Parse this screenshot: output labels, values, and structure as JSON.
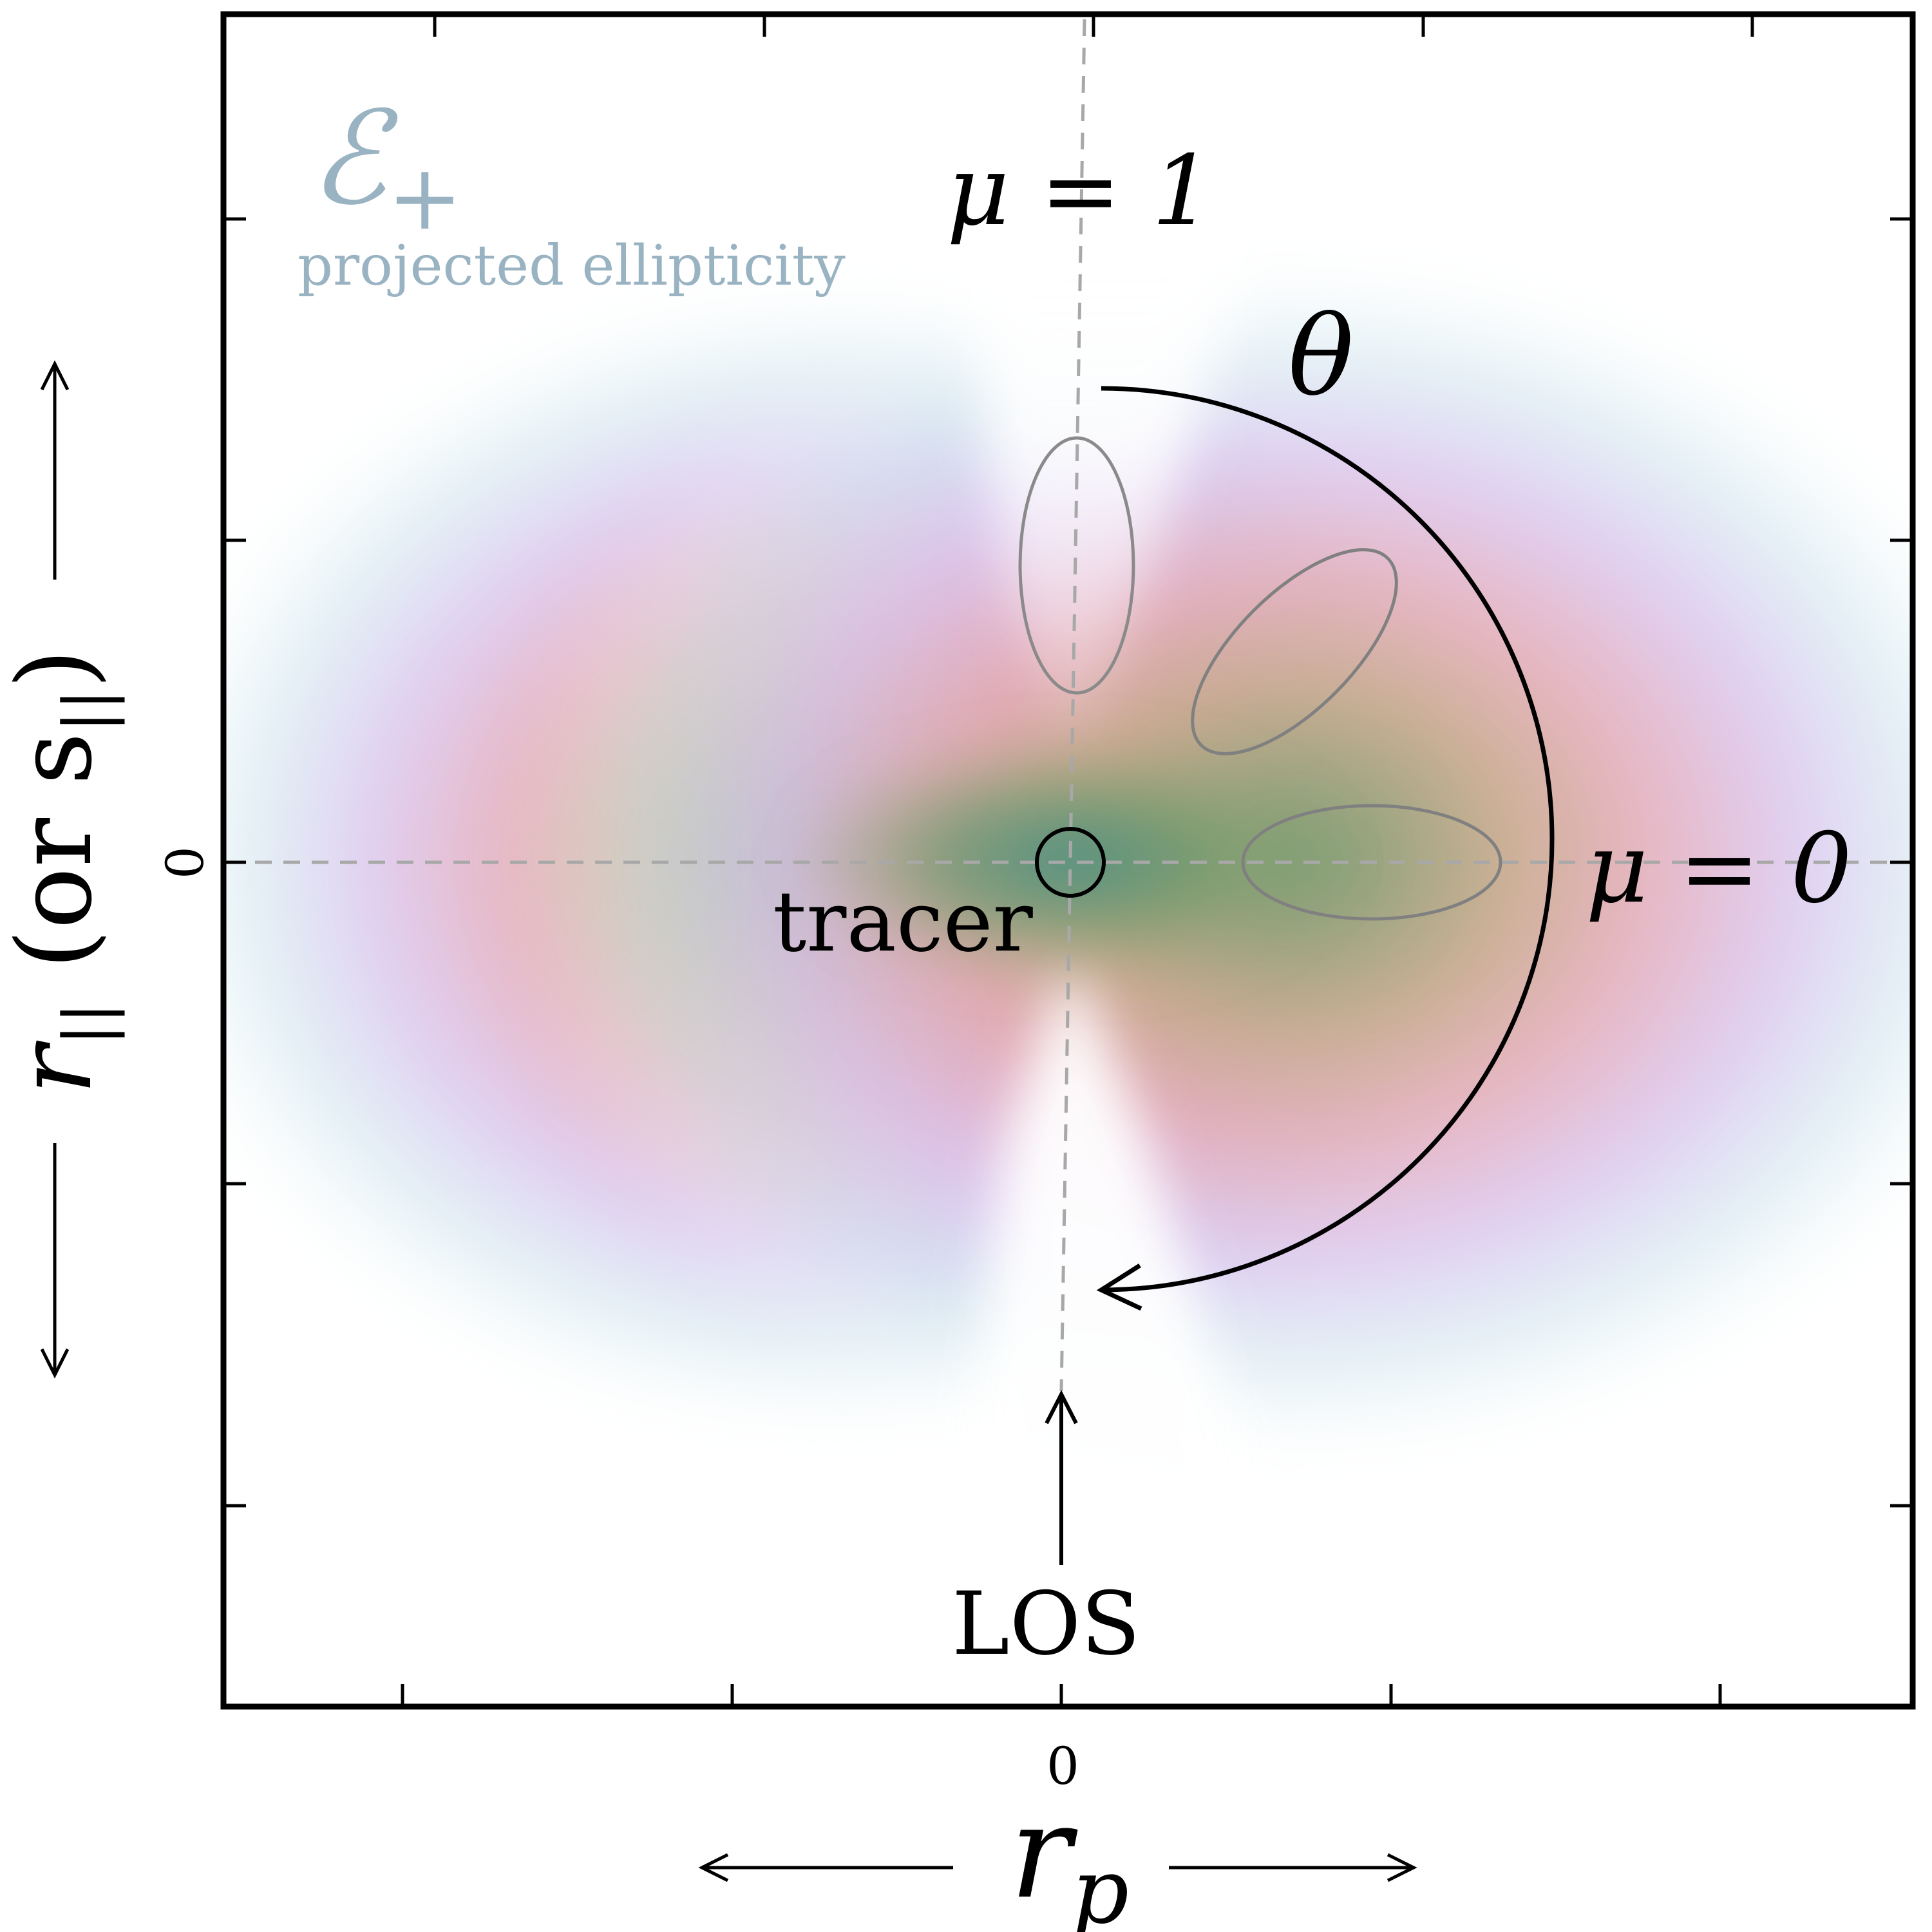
{
  "legend": {
    "symbol": "ℰ",
    "symbol_sub": "+",
    "caption": "projected ellipticity",
    "color": "#9ab3c2"
  },
  "labels": {
    "mu_one": "μ = 1",
    "mu_zero": "μ = 0",
    "theta": "θ",
    "tracer": "tracer",
    "los": "LOS"
  },
  "axes": {
    "x_tick_zero": "0",
    "y_tick_zero": "0",
    "x_label_main": "r",
    "x_label_sub": "p",
    "y_label_main": "r",
    "y_label_sub": "||",
    "y_label_rest": " (or s",
    "y_label_rest_sub": "||",
    "y_label_close": ")"
  },
  "colors": {
    "frame": "#000000",
    "dashed_lines": "#a8a8a8",
    "ellipses": "#8a8a8a",
    "core": "#6f9a6a",
    "inner": "#e3a9b6",
    "outer": "#d3c6ee",
    "halo": "#cfe6ee"
  }
}
